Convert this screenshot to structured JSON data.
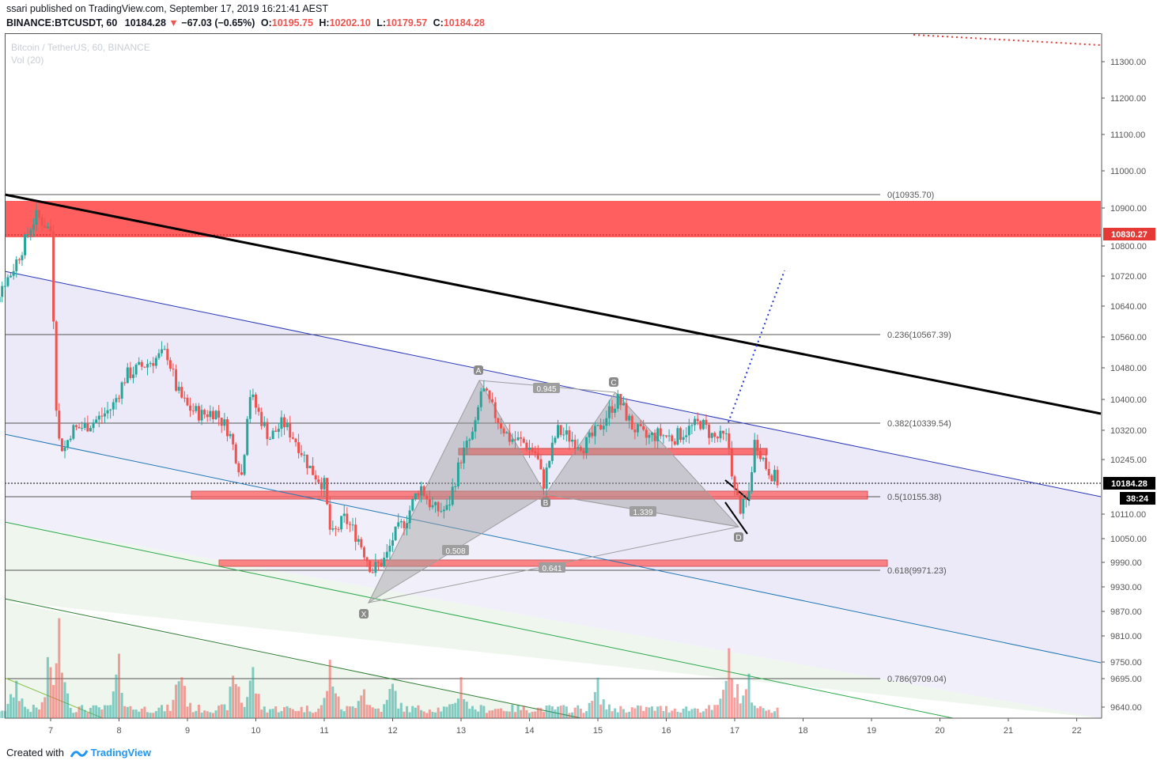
{
  "header": {
    "published_line": "ssari published on TradingView.com, September 17, 2019 16:21:41 AEST",
    "symbol": "BINANCE:BTCUSDT, 60",
    "last": "10184.28",
    "change": "−67.03 (−0.65%)",
    "o_label": "O:",
    "o_value": "10195.75",
    "h_label": "H:",
    "h_value": "10202.10",
    "l_label": "L:",
    "l_value": "10179.57",
    "c_label": "C:",
    "c_value": "10184.28"
  },
  "legend": {
    "title": "Bitcoin / TetherUS, 60, BINANCE",
    "volume": "Vol (20)"
  },
  "footer": {
    "created_with": "Created with",
    "brand": "TradingView"
  },
  "colors": {
    "up": "#26a69a",
    "down": "#ef5350",
    "zone": "#ff5f5f",
    "channel_blue": "#2838b8",
    "channel_teal": "#1f77b4",
    "channel_green": "#2a9d48",
    "trend_black": "#000000",
    "pattern_gray": "#9e9e9e"
  },
  "chart_data": {
    "type": "candlestick",
    "x_tick_labels": [
      "7",
      "8",
      "9",
      "10",
      "11",
      "12",
      "13",
      "14",
      "15",
      "16",
      "17",
      "18",
      "19",
      "20",
      "21",
      "22"
    ],
    "y_tick_labels": [
      "11300.00",
      "11200.00",
      "11100.00",
      "11000.00",
      "10900.00",
      "10800.00",
      "10720.00",
      "10640.00",
      "10560.00",
      "10480.00",
      "10400.00",
      "10320.00",
      "10245.00",
      "10110.00",
      "10050.00",
      "9990.00",
      "9930.00",
      "9870.00",
      "9810.00",
      "9750.00",
      "9695.00",
      "9640.00"
    ],
    "price_label": "10184.28",
    "countdown_label": "38:24",
    "zone_label": "10830.27",
    "fib_levels": [
      {
        "label": "0(10935.70)",
        "value": 10935.7
      },
      {
        "label": "0.236(10567.39)",
        "value": 10567.39
      },
      {
        "label": "0.382(10339.54)",
        "value": 10339.54
      },
      {
        "label": "0.5(10155.38)",
        "value": 10155.38
      },
      {
        "label": "0.618(9971.23)",
        "value": 9971.23
      },
      {
        "label": "0.786(9709.04)",
        "value": 9709.04
      }
    ],
    "harmonic_points": [
      "X",
      "A",
      "B",
      "C",
      "D"
    ],
    "harmonic_ratios": [
      "0.945",
      "1.339",
      "0.508",
      "0.641"
    ],
    "close_path": [
      [
        6.0,
        10570
      ],
      [
        6.1,
        10590
      ],
      [
        6.2,
        10660
      ],
      [
        6.3,
        10700
      ],
      [
        6.4,
        10720
      ],
      [
        6.5,
        10760
      ],
      [
        6.6,
        10800
      ],
      [
        6.7,
        10850
      ],
      [
        6.8,
        10880
      ],
      [
        6.9,
        10860
      ],
      [
        7.0,
        10840
      ],
      [
        7.1,
        10300
      ],
      [
        7.2,
        10270
      ],
      [
        7.3,
        10320
      ],
      [
        7.5,
        10330
      ],
      [
        7.7,
        10350
      ],
      [
        7.9,
        10380
      ],
      [
        8.0,
        10420
      ],
      [
        8.1,
        10460
      ],
      [
        8.3,
        10480
      ],
      [
        8.5,
        10500
      ],
      [
        8.7,
        10520
      ],
      [
        8.85,
        10420
      ],
      [
        9.0,
        10380
      ],
      [
        9.2,
        10360
      ],
      [
        9.4,
        10370
      ],
      [
        9.6,
        10320
      ],
      [
        9.8,
        10200
      ],
      [
        9.9,
        10420
      ],
      [
        10.0,
        10380
      ],
      [
        10.2,
        10300
      ],
      [
        10.4,
        10340
      ],
      [
        10.6,
        10290
      ],
      [
        10.8,
        10220
      ],
      [
        11.0,
        10180
      ],
      [
        11.1,
        10050
      ],
      [
        11.3,
        10100
      ],
      [
        11.5,
        10050
      ],
      [
        11.7,
        9970
      ],
      [
        11.9,
        10000
      ],
      [
        12.0,
        10050
      ],
      [
        12.2,
        10100
      ],
      [
        12.4,
        10180
      ],
      [
        12.6,
        10120
      ],
      [
        12.8,
        10120
      ],
      [
        13.0,
        10250
      ],
      [
        13.2,
        10320
      ],
      [
        13.3,
        10430
      ],
      [
        13.5,
        10360
      ],
      [
        13.7,
        10300
      ],
      [
        13.9,
        10290
      ],
      [
        14.1,
        10260
      ],
      [
        14.2,
        10180
      ],
      [
        14.4,
        10320
      ],
      [
        14.6,
        10300
      ],
      [
        14.8,
        10280
      ],
      [
        15.0,
        10320
      ],
      [
        15.2,
        10380
      ],
      [
        15.3,
        10400
      ],
      [
        15.5,
        10330
      ],
      [
        15.7,
        10300
      ],
      [
        15.9,
        10310
      ],
      [
        16.1,
        10300
      ],
      [
        16.3,
        10320
      ],
      [
        16.5,
        10340
      ],
      [
        16.7,
        10300
      ],
      [
        16.9,
        10300
      ],
      [
        17.0,
        10160
      ],
      [
        17.1,
        10120
      ],
      [
        17.2,
        10150
      ],
      [
        17.3,
        10300
      ],
      [
        17.45,
        10230
      ],
      [
        17.65,
        10184
      ]
    ],
    "volume_levels": [
      {
        "x": 6.5,
        "v": 0.3
      },
      {
        "x": 7.0,
        "v": 0.55
      },
      {
        "x": 7.15,
        "v": 0.95
      },
      {
        "x": 8.0,
        "v": 0.45
      },
      {
        "x": 8.9,
        "v": 0.48
      },
      {
        "x": 9.7,
        "v": 0.4
      },
      {
        "x": 9.95,
        "v": 0.42
      },
      {
        "x": 11.1,
        "v": 0.5
      },
      {
        "x": 11.55,
        "v": 0.3
      },
      {
        "x": 12.0,
        "v": 0.25
      },
      {
        "x": 13.0,
        "v": 0.32
      },
      {
        "x": 15.0,
        "v": 0.25
      },
      {
        "x": 16.9,
        "v": 0.55
      },
      {
        "x": 17.0,
        "v": 0.35
      },
      {
        "x": 17.2,
        "v": 0.28
      }
    ]
  }
}
